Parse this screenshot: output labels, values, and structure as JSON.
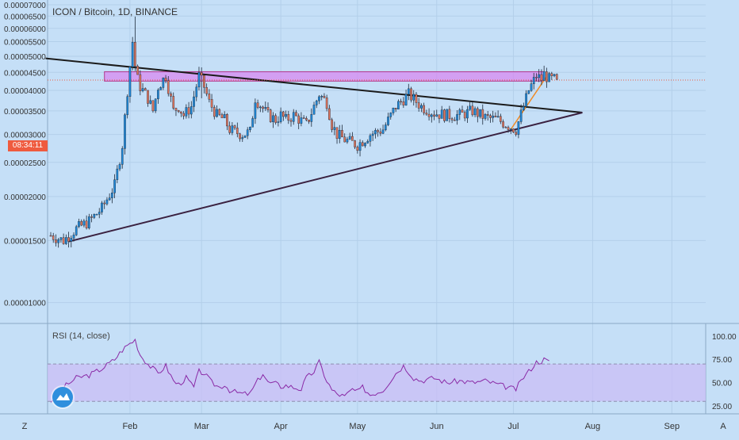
{
  "header": {
    "title": "ICON / Bitcoin, 1D, BINANCE"
  },
  "price_tag": {
    "text": "08:34:11",
    "color": "#ef5b3f"
  },
  "rsi": {
    "label": "RSI (14, close)"
  },
  "colors": {
    "background": "#c5dff7",
    "bull_candle": "#1e88d9",
    "bear_candle": "#e0745c",
    "resistance_box": "#d983f0",
    "trendline": "#1b1b1b",
    "support_line": "#3a2140",
    "rsi_line": "#8a2aa6",
    "rsi_band": "#c9bdf5",
    "price_line": "#ef5b3f"
  },
  "chart_data": [
    {
      "type": "line",
      "title": "ICON / Bitcoin, 1D, BINANCE",
      "subtype": "candlestick",
      "ylim": [
        9e-06,
        7e-05
      ],
      "y_ticks": [
        "0.00001000",
        "0.00001500",
        "0.00002000",
        "0.00002500",
        "0.00003000",
        "0.00003500",
        "0.00004000",
        "0.00004500",
        "0.00005000",
        "0.00005500",
        "0.00006000",
        "0.00006500",
        "0.00007000"
      ],
      "y_tick_values": [
        1e-05,
        1.5e-05,
        2e-05,
        2.5e-05,
        3e-05,
        3.5e-05,
        4e-05,
        4.5e-05,
        5e-05,
        5.5e-05,
        6e-05,
        6.5e-05,
        7e-05
      ],
      "x_ticks": [
        "Z",
        "Feb",
        "Mar",
        "Apr",
        "May",
        "Jun",
        "Jul",
        "Aug",
        "Sep",
        "A"
      ],
      "x_tick_day": [
        -8,
        31,
        59,
        90,
        120,
        151,
        181,
        212,
        243,
        273
      ],
      "x_range_day": [
        0,
        255
      ],
      "grid": true,
      "series": [
        {
          "kind": "close_anchors",
          "day": [
            0,
            5,
            10,
            15,
            20,
            25,
            28,
            30,
            32,
            33,
            34,
            35,
            36,
            38,
            40,
            42,
            45,
            48,
            50,
            52,
            55,
            58,
            60,
            62,
            65,
            68,
            70,
            72,
            75,
            78,
            80,
            85,
            88,
            90,
            92,
            95,
            100,
            105,
            108,
            110,
            112,
            115,
            120,
            125,
            130,
            135,
            140,
            145,
            150,
            155,
            160,
            165,
            170,
            175,
            180,
            182,
            185,
            187,
            190,
            192,
            193,
            195,
            198
          ],
          "close": [
            1.55e-05,
            1.5e-05,
            1.62e-05,
            1.7e-05,
            1.85e-05,
            2.15e-05,
            2.8e-05,
            4e-05,
            5.5e-05,
            4.7e-05,
            4.3e-05,
            4.1e-05,
            4e-05,
            3.8e-05,
            3.5e-05,
            4.1e-05,
            4.4e-05,
            3.5e-05,
            3.6e-05,
            3.4e-05,
            3.6e-05,
            4.4e-05,
            4.1e-05,
            3.7e-05,
            3.4e-05,
            3.3e-05,
            3.1e-05,
            3.05e-05,
            3e-05,
            3.05e-05,
            3.8e-05,
            3.4e-05,
            3.3e-05,
            3.4e-05,
            3.3e-05,
            3.4e-05,
            3.2e-05,
            3.9e-05,
            3.7e-05,
            3.2e-05,
            3e-05,
            2.9e-05,
            2.8e-05,
            3e-05,
            3.1e-05,
            3.6e-05,
            3.9e-05,
            3.6e-05,
            3.45e-05,
            3.4e-05,
            3.4e-05,
            3.5e-05,
            3.35e-05,
            3.3e-05,
            3.15e-05,
            3.1e-05,
            3.6e-05,
            4e-05,
            4.4e-05,
            4.3e-05,
            4.45e-05,
            4.3e-05,
            4.3e-05
          ]
        },
        {
          "kind": "wick",
          "day": 33,
          "high": 6.48e-05,
          "low": 4.7e-05
        },
        {
          "kind": "wick",
          "day": 59,
          "high": 4.65e-05,
          "low": 3.8e-05
        }
      ],
      "annotations": [
        {
          "kind": "resistance_box",
          "day_range": [
            21,
            193
          ],
          "value_range": [
            4.25e-05,
            4.52e-05
          ]
        },
        {
          "kind": "descending_trendline",
          "from": {
            "day": -2,
            "value": 4.93e-05
          },
          "to": {
            "day": 208,
            "value": 3.46e-05
          }
        },
        {
          "kind": "ascending_trendline",
          "from": {
            "day": 7,
            "value": 1.49e-05
          },
          "to": {
            "day": 208,
            "value": 3.46e-05
          }
        },
        {
          "kind": "last_price_line",
          "value": 4.28e-05
        },
        {
          "kind": "orange_trend",
          "from": {
            "day": 180,
            "value": 3.1e-05
          },
          "to": {
            "day": 194,
            "value": 4.38e-05
          }
        }
      ]
    },
    {
      "type": "line",
      "title": "RSI (14, close)",
      "ylim": [
        20,
        110
      ],
      "y_ticks": [
        "25.00",
        "50.00",
        "75.00",
        "100.00"
      ],
      "y_tick_values": [
        25,
        50,
        75,
        100
      ],
      "band": [
        30,
        70
      ],
      "series": [
        {
          "name": "RSI (14, close)",
          "day": [
            0,
            5,
            10,
            15,
            20,
            25,
            28,
            30,
            33,
            35,
            38,
            40,
            42,
            45,
            48,
            50,
            53,
            56,
            58,
            60,
            63,
            66,
            68,
            70,
            72,
            75,
            78,
            80,
            83,
            85,
            88,
            90,
            92,
            95,
            98,
            100,
            103,
            105,
            108,
            110,
            112,
            115,
            118,
            120,
            122,
            125,
            130,
            135,
            138,
            140,
            142,
            145,
            150,
            155,
            160,
            165,
            170,
            175,
            180,
            182,
            185,
            187,
            190,
            192,
            193,
            195
          ],
          "values": [
            30,
            45,
            55,
            58,
            65,
            75,
            85,
            90,
            96,
            80,
            70,
            65,
            60,
            68,
            52,
            48,
            55,
            45,
            62,
            60,
            50,
            45,
            48,
            42,
            40,
            38,
            38,
            48,
            60,
            50,
            49,
            46,
            47,
            45,
            43,
            55,
            62,
            72,
            52,
            42,
            38,
            35,
            43,
            40,
            45,
            37,
            42,
            60,
            68,
            62,
            55,
            52,
            55,
            50,
            52,
            50,
            52,
            48,
            44,
            43,
            56,
            62,
            72,
            73,
            75,
            72
          ]
        }
      ]
    }
  ]
}
